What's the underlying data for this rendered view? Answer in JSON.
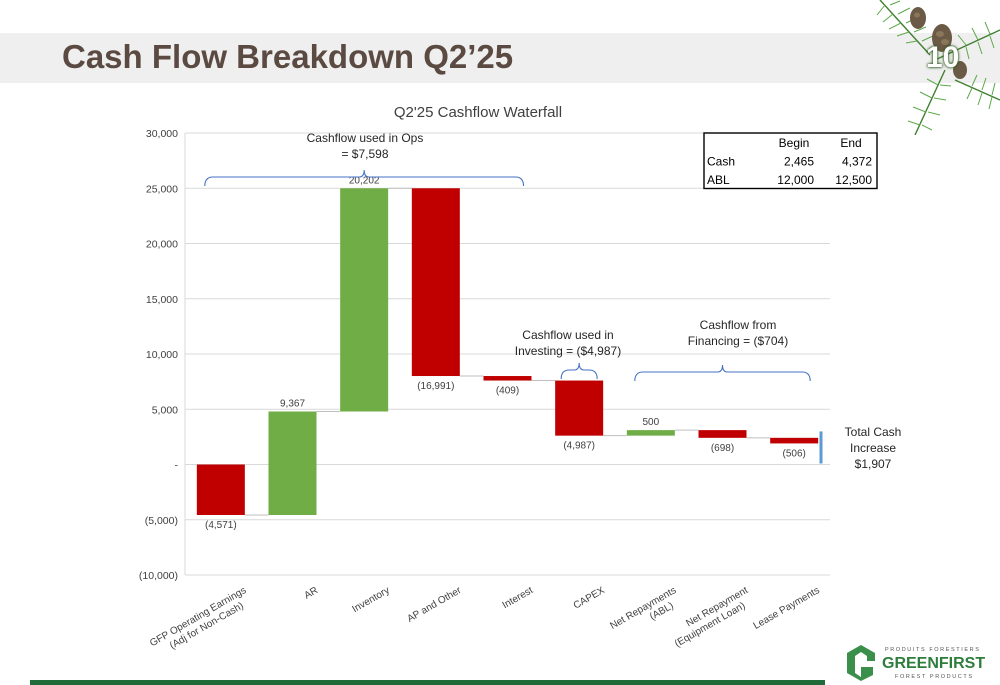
{
  "slide": {
    "title": "Cash Flow Breakdown Q2’25",
    "page_number": "10"
  },
  "logo": {
    "top_line": "PRODUITS FORESTIERS",
    "name": "GREENFIRST",
    "bottom_line": "FOREST PRODUCTS"
  },
  "colors": {
    "negative": "#c00000",
    "positive": "#70ad47",
    "total": "#5b9bd5",
    "bracket": "#4472c4",
    "title": "#5b4a42"
  },
  "chart_data": {
    "type": "bar",
    "subtype": "waterfall",
    "title": "Q2'25 Cashflow Waterfall",
    "ylim": [
      -10000,
      30000
    ],
    "y_ticks": [
      30000,
      25000,
      20000,
      15000,
      10000,
      5000,
      0,
      -5000,
      -10000
    ],
    "y_tick_labels": [
      "30,000",
      "25,000",
      "20,000",
      "15,000",
      "10,000",
      "5,000",
      "-",
      "(5,000)",
      "(10,000)"
    ],
    "grid": true,
    "categories": [
      "GFP Operating Earnings (Adj for Non-Cash)",
      "AR",
      "Inventory",
      "AP and Other",
      "Interest",
      "CAPEX",
      "Net Repayments (ABL)",
      "Net Repayment (Equipment Loan)",
      "Lease Payments"
    ],
    "category_lines": [
      [
        "GFP Operating Earnings",
        "(Adj for Non-Cash)"
      ],
      [
        "AR"
      ],
      [
        "Inventory"
      ],
      [
        "AP and Other"
      ],
      [
        "Interest"
      ],
      [
        "CAPEX"
      ],
      [
        "Net Repayments",
        "(ABL)"
      ],
      [
        "Net Repayment",
        "(Equipment Loan)"
      ],
      [
        "Lease Payments"
      ]
    ],
    "values": [
      -4571,
      9367,
      20202,
      -16991,
      -409,
      -4987,
      500,
      -698,
      -506
    ],
    "value_labels": [
      "(4,571)",
      "9,367",
      "20,202",
      "(16,991)",
      "(409)",
      "(4,987)",
      "500",
      "(698)",
      "(506)"
    ],
    "total": {
      "value": 1907,
      "label_lines": [
        "Total Cash",
        "Increase",
        "$1,907"
      ]
    },
    "annotations": [
      {
        "lines": [
          "Cashflow used in Ops",
          "= $7,598"
        ],
        "from_index": 0,
        "to_index": 4
      },
      {
        "lines": [
          "Cashflow used in",
          "Investing = ($4,987)"
        ],
        "from_index": 5,
        "to_index": 5
      },
      {
        "lines": [
          "Cashflow from",
          "Financing = ($704)"
        ],
        "from_index": 6,
        "to_index": 8
      }
    ],
    "table": {
      "headers": [
        "",
        "Begin",
        "End"
      ],
      "rows": [
        [
          "Cash",
          "2,465",
          "4,372"
        ],
        [
          "ABL",
          "12,000",
          "12,500"
        ]
      ]
    }
  }
}
